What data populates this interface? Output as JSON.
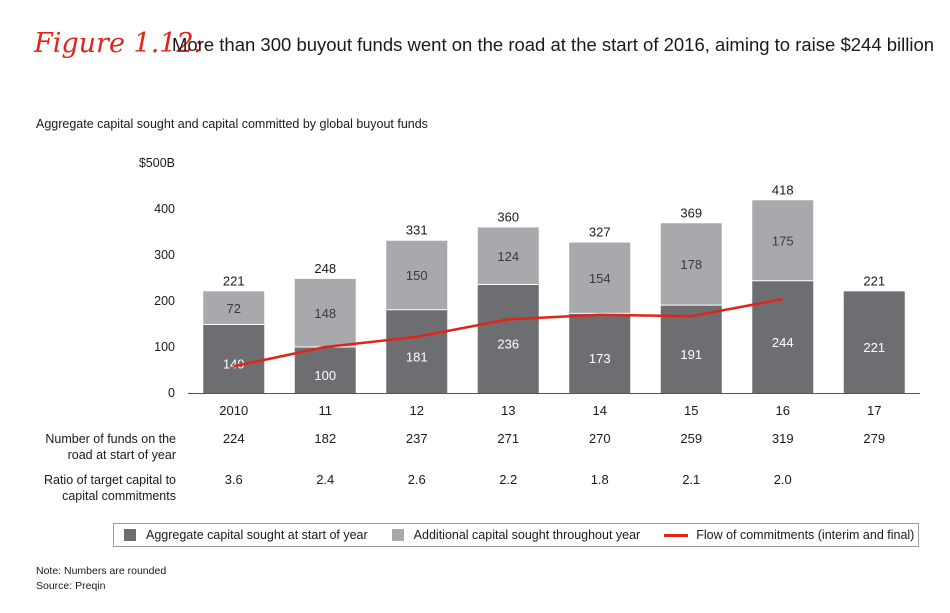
{
  "figure_label": "Figure 1.12:",
  "figure_title": "More than 300 buyout funds went on the road at the start of 2016, aiming to raise $244 billion",
  "colors": {
    "accent": "#e2231a",
    "dark_bar": "#6d6e71",
    "light_bar": "#a7a9ac",
    "line": "#e2231a"
  },
  "chart_data": {
    "type": "bar",
    "title": "Aggregate capital sought and capital committed by global buyout funds",
    "categories": [
      "2010",
      "11",
      "12",
      "13",
      "14",
      "15",
      "16",
      "17"
    ],
    "ylim": [
      0,
      500
    ],
    "yticks": [
      "0",
      "100",
      "200",
      "300",
      "400",
      "$500B"
    ],
    "ytick_values": [
      0,
      100,
      200,
      300,
      400,
      500
    ],
    "series": [
      {
        "name": "Aggregate capital sought at start of year",
        "values": [
          149,
          100,
          181,
          236,
          173,
          191,
          244,
          221
        ]
      },
      {
        "name": "Additional capital sought throughout year",
        "values": [
          72,
          148,
          150,
          124,
          154,
          178,
          175,
          null
        ]
      },
      {
        "name": "Flow of commitments (interim and final)",
        "type": "line",
        "values": [
          58,
          100,
          122,
          160,
          170,
          167,
          204,
          null
        ]
      }
    ],
    "totals": [
      "221",
      "248",
      "331",
      "360",
      "327",
      "369",
      "418",
      "221"
    ],
    "table_rows": [
      {
        "label": "Number of funds on the road at start of year",
        "values": [
          "224",
          "182",
          "237",
          "271",
          "270",
          "259",
          "319",
          "279"
        ]
      },
      {
        "label": "Ratio of target capital to capital commitments",
        "values": [
          "3.6",
          "2.4",
          "2.6",
          "2.2",
          "1.8",
          "2.1",
          "2.0",
          ""
        ]
      }
    ],
    "legend": [
      "Aggregate capital sought at start of year",
      "Additional capital sought throughout year",
      "Flow of commitments (interim and final)"
    ],
    "legend_position": "bottom"
  },
  "notes": {
    "note": "Note: Numbers are rounded",
    "source": "Source: Preqin"
  }
}
